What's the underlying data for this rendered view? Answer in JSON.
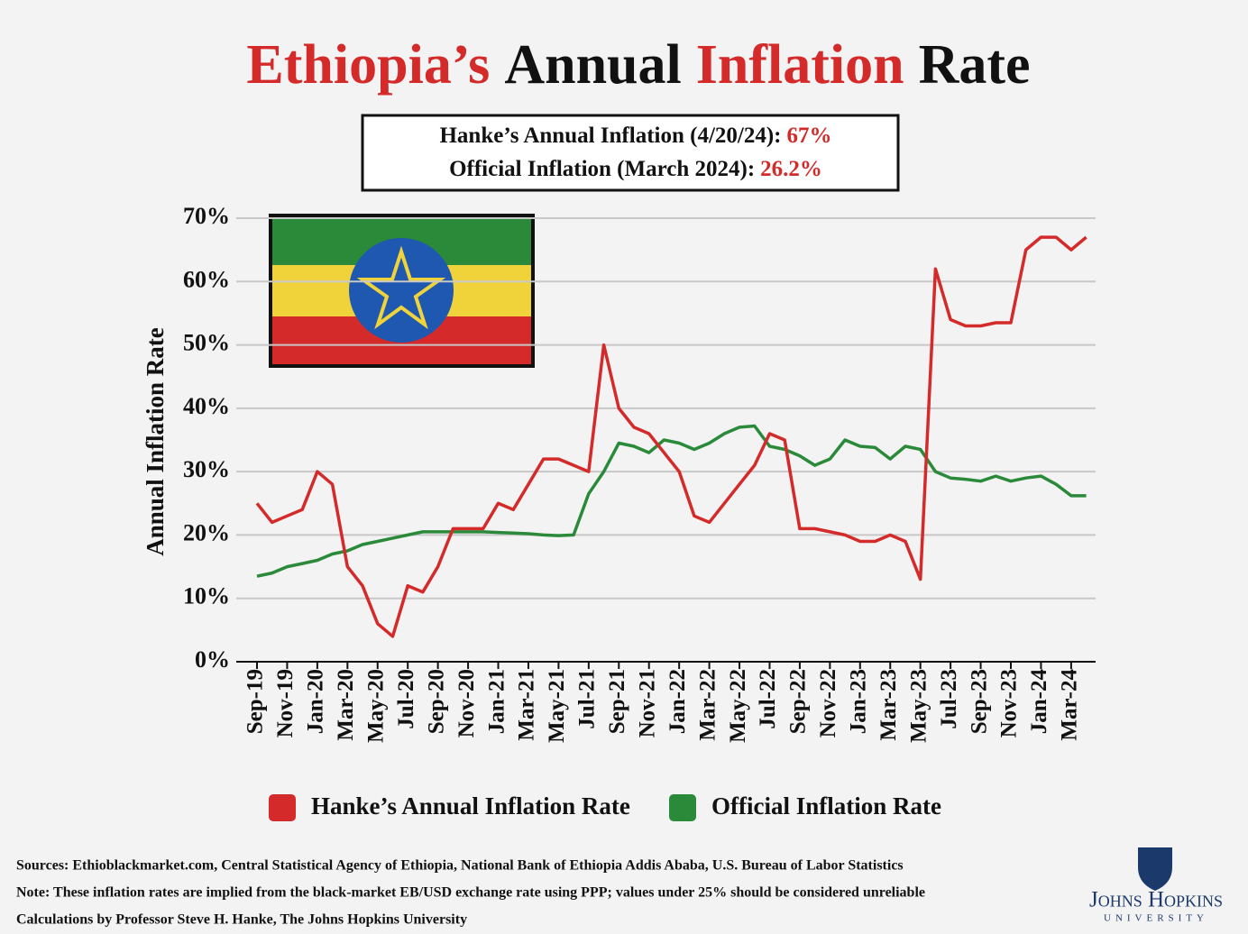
{
  "chart_data": {
    "type": "line",
    "title_parts": [
      {
        "text": "Ethiopia’s",
        "color": "#d42a2a"
      },
      {
        "text": "Annual",
        "color": "#111111"
      },
      {
        "text": "Inflation",
        "color": "#d42a2a"
      },
      {
        "text": "Rate",
        "color": "#111111"
      }
    ],
    "stats": [
      {
        "label": "Hanke’s Annual Inflation (4/20/24):",
        "value": "67%"
      },
      {
        "label": "Official Inflation (March 2024):",
        "value": "26.2%"
      }
    ],
    "y_label": "Annual Inflation Rate",
    "categories": [
      "Sep-19",
      null,
      "Nov-19",
      null,
      "Jan-20",
      null,
      "Mar-20",
      null,
      "May-20",
      null,
      "Jul-20",
      null,
      "Sep-20",
      null,
      "Nov-20",
      null,
      "Jan-21",
      null,
      "Mar-21",
      null,
      "May-21",
      null,
      "Jul-21",
      null,
      "Sep-21",
      null,
      "Nov-21",
      null,
      "Jan-22",
      null,
      "Mar-22",
      null,
      "May-22",
      null,
      "Jul-22",
      null,
      "Sep-22",
      null,
      "Nov-22",
      null,
      "Jan-23",
      null,
      "Mar-23",
      null,
      "May-23",
      null,
      "Jul-23",
      null,
      "Sep-23",
      null,
      "Nov-23",
      null,
      "Jan-24",
      null,
      "Mar-24",
      null
    ],
    "series": [
      {
        "name": "Hanke’s Annual Inflation Rate",
        "color": "#d42a2a",
        "values": [
          25,
          22,
          23,
          24,
          30,
          28,
          15,
          12,
          6,
          4,
          12,
          11,
          15,
          21,
          21,
          21,
          25,
          24,
          28,
          32,
          32,
          31,
          30,
          50,
          40,
          37,
          36,
          33,
          30,
          23,
          22,
          25,
          28,
          31,
          36,
          35,
          21,
          21,
          20.5,
          20,
          19,
          19,
          20,
          19,
          13,
          62,
          54,
          53,
          53,
          53.5,
          53.5,
          65,
          67,
          67,
          65,
          67
        ]
      },
      {
        "name": "Official Inflation Rate",
        "color": "#2a8a3a",
        "values": [
          13.5,
          14,
          15,
          15.5,
          16,
          17,
          17.5,
          18.5,
          19,
          19.5,
          20,
          20.5,
          20.5,
          20.5,
          20.5,
          20.5,
          20.4,
          20.3,
          20.2,
          20,
          19.9,
          20,
          26.5,
          30,
          34.5,
          34,
          33,
          35,
          34.5,
          33.5,
          34.5,
          36,
          37,
          37.2,
          34,
          33.5,
          32.5,
          31,
          32,
          35,
          34,
          33.8,
          32,
          34,
          33.5,
          30,
          29,
          28.8,
          28.5,
          29.3,
          28.5,
          29,
          29.3,
          28,
          26.2,
          26.2
        ]
      }
    ],
    "ylim": [
      0,
      70
    ],
    "yticks": [
      {
        "value": 0,
        "label": "0%"
      },
      {
        "value": 10,
        "label": "10%"
      },
      {
        "value": 20,
        "label": "20%"
      },
      {
        "value": 30,
        "label": "30%"
      },
      {
        "value": 40,
        "label": "40%"
      },
      {
        "value": 50,
        "label": "50%"
      },
      {
        "value": 60,
        "label": "60%"
      },
      {
        "value": 70,
        "label": "70%"
      }
    ],
    "grid": true,
    "sources": [
      "Sources: Ethioblackmarket.com, Central Statistical Agency of Ethiopia, National Bank of Ethiopia Addis Ababa, U.S. Bureau of Labor Statistics",
      "Note: These inflation rates are implied from the black-market EB/USD exchange rate using PPP; values under 25% should be considered unreliable",
      "Calculations by Professor Steve H. Hanke, The Johns Hopkins University"
    ],
    "logo": {
      "name": "Johns Hopkins",
      "sub": "UNIVERSITY"
    }
  }
}
